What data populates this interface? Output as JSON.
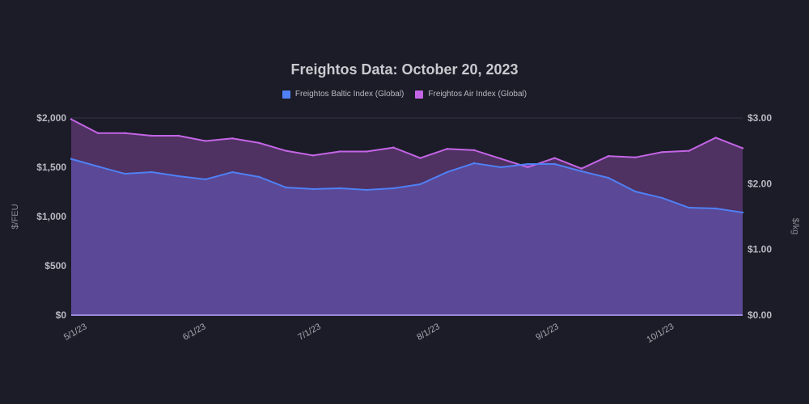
{
  "chart_data": {
    "type": "area",
    "title": "Freightos Data: October 20, 2023",
    "x": [
      "2023-05-01",
      "2023-05-08",
      "2023-05-15",
      "2023-05-22",
      "2023-05-29",
      "2023-06-05",
      "2023-06-12",
      "2023-06-19",
      "2023-06-26",
      "2023-07-03",
      "2023-07-10",
      "2023-07-17",
      "2023-07-24",
      "2023-07-31",
      "2023-08-07",
      "2023-08-14",
      "2023-08-21",
      "2023-08-28",
      "2023-09-04",
      "2023-09-11",
      "2023-09-18",
      "2023-09-25",
      "2023-10-02",
      "2023-10-09",
      "2023-10-16",
      "2023-10-20"
    ],
    "xticks": [
      "5/1/23",
      "6/1/23",
      "7/1/23",
      "8/1/23",
      "9/1/23",
      "10/1/23"
    ],
    "xtick_dates": [
      "2023-05-01",
      "2023-06-01",
      "2023-07-01",
      "2023-08-01",
      "2023-09-01",
      "2023-10-01"
    ],
    "ylabel_left": "$/FEU",
    "ylabel_right": "$/kg",
    "ylim_left": [
      0,
      2000
    ],
    "ylim_right": [
      0,
      3
    ],
    "yticks_left": [
      "$0",
      "$500",
      "$1,000",
      "$1,500",
      "$2,000"
    ],
    "yticks_right": [
      "$0.00",
      "$1.00",
      "$2.00",
      "$3.00"
    ],
    "grid": true,
    "legend_position": "top-center",
    "series": [
      {
        "name": "Freightos Baltic Index (Global)",
        "axis": "left",
        "color": "#4f80f5",
        "fill": "#5b4896",
        "values": [
          1584,
          1508,
          1434,
          1451,
          1410,
          1377,
          1451,
          1402,
          1295,
          1279,
          1287,
          1270,
          1287,
          1328,
          1451,
          1541,
          1500,
          1533,
          1533,
          1459,
          1393,
          1254,
          1189,
          1090,
          1082,
          1041
        ]
      },
      {
        "name": "Freightos Air Index (Global)",
        "axis": "right",
        "color": "#c465e6",
        "fill": "#4f3162",
        "values": [
          2.98,
          2.77,
          2.77,
          2.73,
          2.73,
          2.65,
          2.69,
          2.62,
          2.5,
          2.43,
          2.49,
          2.49,
          2.55,
          2.39,
          2.53,
          2.51,
          2.38,
          2.25,
          2.39,
          2.23,
          2.42,
          2.4,
          2.48,
          2.5,
          2.7,
          2.54
        ]
      }
    ]
  }
}
